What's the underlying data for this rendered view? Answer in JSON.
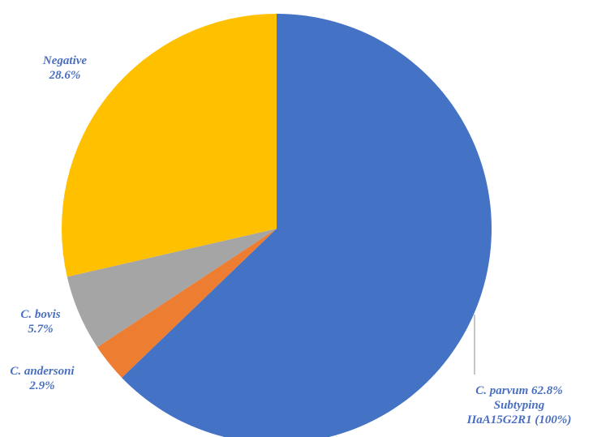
{
  "chart_data": {
    "type": "pie",
    "title": "",
    "start": "12 o'clock",
    "direction": "clockwise",
    "slices": [
      {
        "name": "C. parvum",
        "value": 62.8,
        "color": "#4472c4",
        "label_lines": [
          "C. parvum 62.8%",
          "Subtyping",
          "IIaA15G2R1  (100%)"
        ]
      },
      {
        "name": "C. andersoni",
        "value": 2.9,
        "color": "#ed7d31",
        "label_lines": [
          "C. andersoni",
          "2.9%"
        ]
      },
      {
        "name": "C. bovis",
        "value": 5.7,
        "color": "#a5a5a5",
        "label_lines": [
          "C. bovis",
          "5.7%"
        ]
      },
      {
        "name": "Negative",
        "value": 28.6,
        "color": "#ffc000",
        "label_lines": [
          "Negative",
          "28.6%"
        ]
      }
    ],
    "label_color": "#4a6fc0",
    "leader_line_color": "#8c8c8c"
  }
}
